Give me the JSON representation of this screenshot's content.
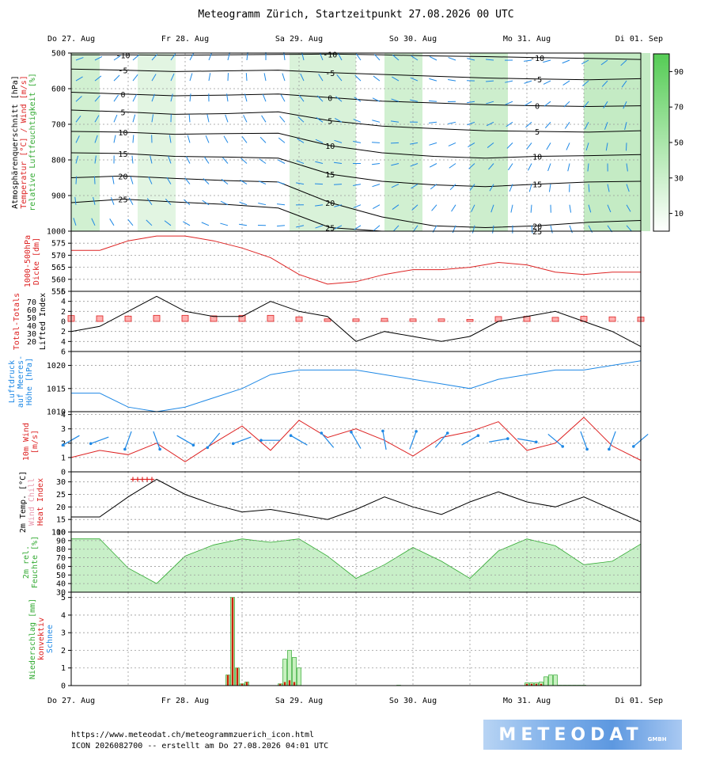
{
  "title": "Meteogramm Zürich, Startzeitpunkt 27.08.2026 00 UTC",
  "days": [
    "Do 27. Aug",
    "Fr 28. Aug",
    "Sa 29. Aug",
    "So 30. Aug",
    "Mo 31. Aug",
    "Di 01. Sep"
  ],
  "footer": {
    "url": "https://www.meteodat.ch/meteogrammzuerich_icon.html",
    "run": "ICON 2026082700 -- erstellt am Do 27.08.2026 04:01 UTC"
  },
  "logo": {
    "name": "METEODAT",
    "suffix": "GMBH"
  },
  "colors": {
    "temp": "#dd2222",
    "wind": "#1e88e5",
    "humidity": "#33aa33",
    "humidity_fill": "#c8efc8",
    "rain_conv": "#cc2200",
    "rain_fill": "#c8f0c0"
  },
  "chart_data": [
    {
      "type": "heatmap",
      "panel": "cross-section",
      "ylabel": [
        "Atmosphärenquerschnitt [hPa]",
        "Temperatur [°C] / Wind [m/s]",
        "relative Luftfeuchtigkeit [%]"
      ],
      "ylim": [
        1000,
        500
      ],
      "yticks": [
        500,
        600,
        700,
        800,
        900,
        1000
      ],
      "colorbar_ticks": [
        10,
        30,
        50,
        70,
        90
      ],
      "humid_bands": [
        [
          0,
          6,
          0.55
        ],
        [
          14,
          22,
          0.35
        ],
        [
          46,
          60,
          0.45
        ],
        [
          66,
          74,
          0.55
        ],
        [
          84,
          92,
          0.6
        ],
        [
          108,
          122,
          0.7
        ]
      ],
      "isotherms": [
        {
          "level": -10,
          "y": [
            505,
            505,
            506,
            505,
            504,
            503,
            505,
            508,
            510,
            513,
            515,
            518
          ]
        },
        {
          "level": -5,
          "y": [
            545,
            548,
            552,
            550,
            548,
            555,
            560,
            565,
            570,
            573,
            575,
            572
          ]
        },
        {
          "level": 0,
          "y": [
            610,
            615,
            620,
            618,
            615,
            625,
            635,
            640,
            645,
            648,
            650,
            648
          ]
        },
        {
          "level": 5,
          "y": [
            660,
            665,
            672,
            670,
            665,
            690,
            705,
            712,
            718,
            720,
            722,
            718
          ]
        },
        {
          "level": 10,
          "y": [
            720,
            722,
            728,
            726,
            725,
            760,
            780,
            790,
            795,
            790,
            788,
            785
          ]
        },
        {
          "level": 15,
          "y": [
            780,
            782,
            790,
            792,
            795,
            840,
            860,
            870,
            875,
            868,
            862,
            860
          ]
        },
        {
          "level": 20,
          "y": [
            850,
            845,
            852,
            858,
            862,
            920,
            960,
            985,
            990,
            985,
            975,
            970
          ]
        },
        {
          "level": 25,
          "y": [
            920,
            910,
            918,
            925,
            935,
            990,
            1000,
            1000,
            1000,
            1000,
            1000,
            1000
          ]
        }
      ]
    },
    {
      "type": "line",
      "panel": "thickness",
      "ylabel": [
        "1000-500hPa",
        "Dicke [dm]"
      ],
      "ylim": [
        555,
        580
      ],
      "yticks": [
        555,
        560,
        565,
        570,
        575
      ],
      "x_hours": [
        0,
        6,
        12,
        18,
        24,
        30,
        36,
        42,
        48,
        54,
        60,
        66,
        72,
        78,
        84,
        90,
        96,
        102,
        108,
        114,
        120
      ],
      "values": [
        572,
        572,
        576,
        578,
        578,
        576,
        573,
        569,
        562,
        558,
        559,
        562,
        564,
        564,
        565,
        567,
        566,
        563,
        562,
        563,
        563
      ]
    },
    {
      "type": "bar",
      "panel": "stability",
      "ylabel_left": "Total-Totals",
      "ylabel_right": "Lifted Index",
      "ylim": [
        6,
        -6
      ],
      "yticks": [
        -6,
        -4,
        -2,
        0,
        2,
        4,
        6
      ],
      "tt_ticks": [
        20,
        30,
        40,
        50,
        60,
        70
      ],
      "x_hours": [
        0,
        6,
        12,
        18,
        24,
        30,
        36,
        42,
        48,
        54,
        60,
        66,
        72,
        78,
        84,
        90,
        96,
        102,
        108,
        114,
        120
      ],
      "lifted_index": [
        2,
        1,
        -2,
        -5,
        -2,
        -1,
        -1,
        -4,
        -2,
        -1,
        4,
        2,
        3,
        4,
        3,
        0,
        -1,
        -2,
        0,
        2,
        5
      ],
      "total_totals": [
        43,
        42,
        41,
        44,
        44,
        42,
        44,
        44,
        38,
        30,
        30,
        32,
        30,
        30,
        28,
        39,
        40,
        36,
        40,
        38,
        37
      ]
    },
    {
      "type": "line",
      "panel": "pressure",
      "ylabel": [
        "Luftdruck",
        "auf Meeres-",
        "Höhe [hPa]"
      ],
      "ylim": [
        1010,
        1023
      ],
      "yticks": [
        1010,
        1015,
        1020
      ],
      "x_hours": [
        0,
        6,
        12,
        18,
        24,
        30,
        36,
        42,
        48,
        54,
        60,
        66,
        72,
        78,
        84,
        90,
        96,
        102,
        108,
        114,
        120
      ],
      "values": [
        1014,
        1014,
        1011,
        1010,
        1011,
        1013,
        1015,
        1018,
        1019,
        1019,
        1019,
        1018,
        1017,
        1016,
        1015,
        1017,
        1018,
        1019,
        1019,
        1020,
        1021
      ]
    },
    {
      "type": "line",
      "panel": "wind10m",
      "ylabel": [
        "10m Wind",
        "[m/s]"
      ],
      "ylim": [
        0,
        4.2
      ],
      "yticks": [
        0,
        1,
        2,
        3,
        4
      ],
      "x_hours": [
        0,
        6,
        12,
        18,
        24,
        30,
        36,
        42,
        48,
        54,
        60,
        66,
        72,
        78,
        84,
        90,
        96,
        102,
        108,
        114,
        120
      ],
      "values": [
        1.0,
        1.5,
        1.2,
        2.0,
        0.7,
        2.0,
        3.2,
        1.5,
        3.6,
        2.4,
        3.0,
        2.2,
        1.1,
        2.4,
        2.8,
        3.5,
        1.5,
        2.0,
        3.8,
        1.8,
        0.8
      ],
      "direction_deg": [
        240,
        250,
        200,
        160,
        120,
        220,
        250,
        270,
        300,
        320,
        330,
        350,
        20,
        40,
        60,
        80,
        100,
        130,
        160,
        200,
        230
      ]
    },
    {
      "type": "line",
      "panel": "temp2m",
      "ylabel": [
        "2m Temp. [°C]",
        "Wind Chill",
        "Heat Index"
      ],
      "ylim": [
        10,
        34
      ],
      "yticks": [
        10,
        15,
        20,
        25,
        30
      ],
      "x_hours": [
        0,
        6,
        12,
        18,
        24,
        30,
        36,
        42,
        48,
        54,
        60,
        66,
        72,
        78,
        84,
        90,
        96,
        102,
        108,
        114,
        120
      ],
      "values": [
        16,
        16,
        24,
        31,
        25,
        21,
        18,
        19,
        17,
        15,
        19,
        24,
        20,
        17,
        22,
        26,
        22,
        20,
        24,
        19,
        14
      ],
      "heat_index_hours": [
        13,
        14,
        15,
        16,
        17
      ],
      "heat_index_values": [
        31,
        31,
        31,
        31,
        31
      ]
    },
    {
      "type": "area",
      "panel": "humidity",
      "ylabel": [
        "2m rel.",
        "Feuchte [%]"
      ],
      "ylim": [
        30,
        100
      ],
      "yticks": [
        30,
        40,
        50,
        60,
        70,
        80,
        90,
        100
      ],
      "x_hours": [
        0,
        6,
        12,
        18,
        24,
        30,
        36,
        42,
        48,
        54,
        60,
        66,
        72,
        78,
        84,
        90,
        96,
        102,
        108,
        114,
        120
      ],
      "values": [
        92,
        92,
        58,
        40,
        72,
        85,
        92,
        88,
        92,
        72,
        46,
        62,
        82,
        66,
        46,
        78,
        92,
        84,
        62,
        66,
        86
      ]
    },
    {
      "type": "bar",
      "panel": "precipitation",
      "ylabel": [
        "Niederschlag [mm]",
        "konvektiv",
        "Schnee"
      ],
      "ylim": [
        0,
        5.3
      ],
      "yticks": [
        0,
        1,
        2,
        3,
        4,
        5
      ],
      "x_hours": [
        33,
        34,
        35,
        36,
        37,
        44,
        45,
        46,
        47,
        48,
        69,
        96,
        97,
        98,
        99,
        100,
        101,
        102,
        103,
        104,
        105,
        106,
        107,
        108
      ],
      "total": [
        0.6,
        5.0,
        1.0,
        0.1,
        0.2,
        0.1,
        1.5,
        2.0,
        1.6,
        1.0,
        0.02,
        0.15,
        0.15,
        0.15,
        0.2,
        0.5,
        0.6,
        0.6,
        0.02,
        0.02,
        0.02,
        0.02,
        0.02,
        0.02
      ],
      "convective": [
        0.6,
        5.0,
        1.0,
        0.1,
        0.2,
        0.1,
        0.2,
        0.3,
        0.2,
        0.0,
        0.0,
        0.1,
        0.1,
        0.1,
        0.1,
        0.0,
        0.0,
        0.0,
        0.02,
        0.02,
        0.02,
        0.02,
        0.02,
        0.02
      ]
    }
  ]
}
